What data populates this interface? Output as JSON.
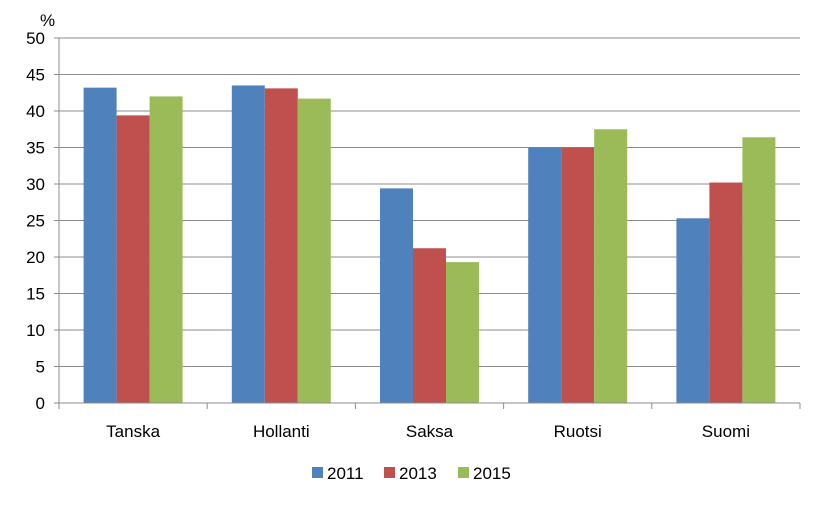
{
  "chart_data": {
    "type": "bar",
    "y_unit_label": "%",
    "categories": [
      "Tanska",
      "Hollanti",
      "Saksa",
      "Ruotsi",
      "Suomi"
    ],
    "series": [
      {
        "name": "2011",
        "color": "#4f81bd",
        "values": [
          43.2,
          43.5,
          29.4,
          35.0,
          25.3
        ]
      },
      {
        "name": "2013",
        "color": "#c0504d",
        "values": [
          39.4,
          43.1,
          21.2,
          35.0,
          30.2
        ]
      },
      {
        "name": "2015",
        "color": "#9bbb59",
        "values": [
          42.0,
          41.7,
          19.3,
          37.5,
          36.4
        ]
      }
    ],
    "ylim": [
      0,
      50
    ],
    "y_ticks": [
      "0",
      "5",
      "10",
      "15",
      "20",
      "25",
      "30",
      "35",
      "40",
      "45",
      "50"
    ],
    "grid": true,
    "legend_position": "bottom"
  }
}
